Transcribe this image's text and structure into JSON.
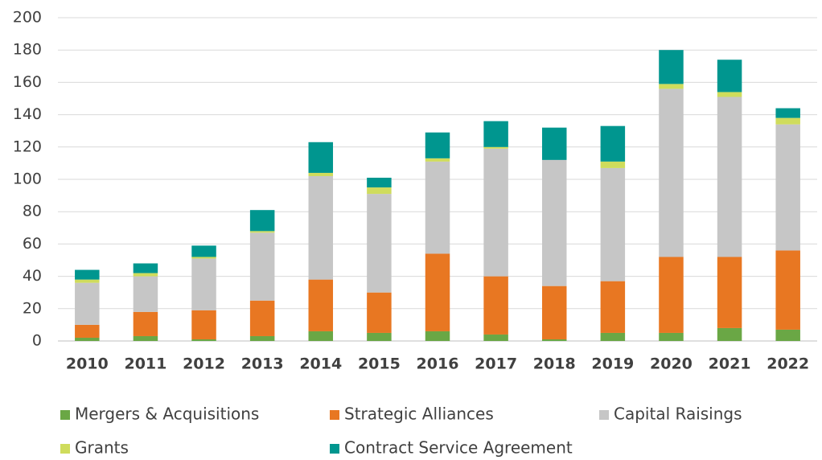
{
  "chart_data": {
    "type": "stacked_bar",
    "categories": [
      "2010",
      "2011",
      "2012",
      "2013",
      "2014",
      "2015",
      "2016",
      "2017",
      "2018",
      "2019",
      "2020",
      "2021",
      "2022"
    ],
    "series": [
      {
        "name": "Mergers & Acquisitions",
        "color": "#6aa745",
        "values": [
          2,
          3,
          1,
          3,
          6,
          5,
          6,
          4,
          1,
          5,
          5,
          8,
          7
        ]
      },
      {
        "name": "Strategic Alliances",
        "color": "#e87722",
        "values": [
          8,
          15,
          18,
          22,
          32,
          25,
          48,
          36,
          33,
          32,
          47,
          44,
          49
        ]
      },
      {
        "name": "Capital Raisings",
        "color": "#c6c6c6",
        "values": [
          26,
          22,
          32,
          42,
          64,
          61,
          57,
          79,
          78,
          70,
          104,
          99,
          78
        ]
      },
      {
        "name": "Grants",
        "color": "#cfdc5c",
        "values": [
          2,
          2,
          1,
          1,
          2,
          4,
          2,
          1,
          0,
          4,
          3,
          3,
          4
        ]
      },
      {
        "name": "Contract Service Agreement",
        "color": "#00968f",
        "values": [
          6,
          6,
          7,
          13,
          19,
          6,
          16,
          16,
          20,
          22,
          21,
          20,
          6
        ]
      }
    ],
    "ylim": [
      0,
      200
    ],
    "yticks": [
      0,
      20,
      40,
      60,
      80,
      100,
      120,
      140,
      160,
      180,
      200
    ],
    "grid": true
  }
}
